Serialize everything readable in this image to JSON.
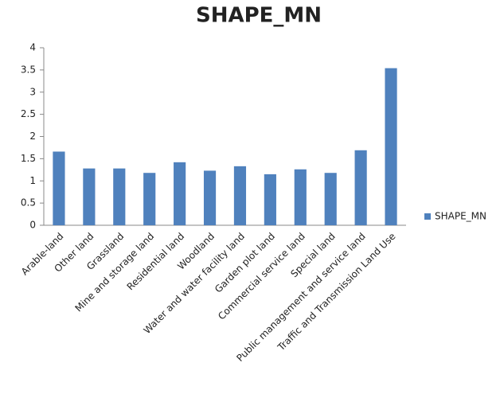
{
  "chart_data": {
    "type": "bar",
    "title": "SHAPE_MN",
    "categories": [
      "Arable-land",
      "Other land",
      "Grassland",
      "Mine and storage land",
      "Residential land",
      "Woodland",
      "Water and water facility land",
      "Garden plot land",
      "Commercial service land",
      "Special land",
      "Public management and service land",
      "Traffic and Transmission Land Use"
    ],
    "series": [
      {
        "name": "SHAPE_MN",
        "color": "#4f81bd",
        "values": [
          1.66,
          1.28,
          1.28,
          1.18,
          1.42,
          1.23,
          1.33,
          1.15,
          1.26,
          1.18,
          1.69,
          3.54
        ]
      }
    ],
    "ylim": [
      0,
      4
    ],
    "yticks": [
      0,
      0.5,
      1,
      1.5,
      2,
      2.5,
      3,
      3.5,
      4
    ],
    "grid": false,
    "legend": "right"
  }
}
